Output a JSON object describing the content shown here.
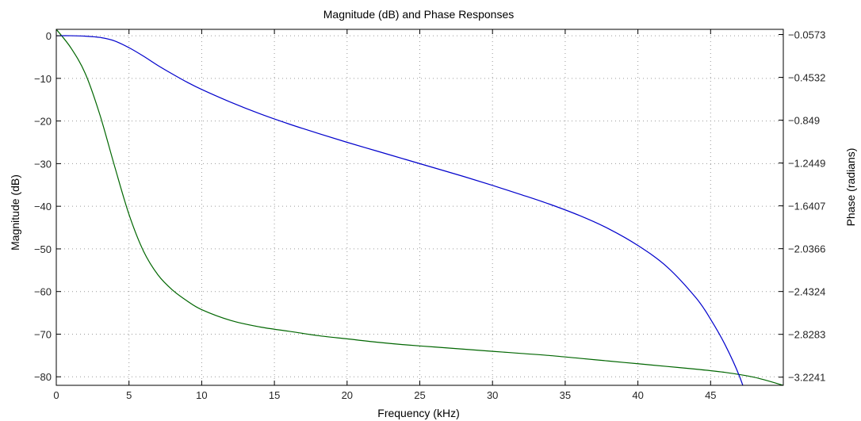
{
  "chart_data": {
    "type": "line",
    "title": "Magnitude (dB) and Phase Responses",
    "xlabel": "Frequency (kHz)",
    "ylabel": "Magnitude (dB)",
    "ylabel_right": "Phase (radians)",
    "xlim": [
      0,
      50
    ],
    "ylim": [
      -82,
      1.5
    ],
    "ylim_right": [
      -3.2994,
      -0.0097
    ],
    "grid": true,
    "x_ticks": [
      0,
      5,
      10,
      15,
      20,
      25,
      30,
      35,
      40,
      45
    ],
    "x_tick_labels": [
      "0",
      "5",
      "10",
      "15",
      "20",
      "25",
      "30",
      "35",
      "40",
      "45"
    ],
    "y_ticks": [
      0,
      -10,
      -20,
      -30,
      -40,
      -50,
      -60,
      -70,
      -80
    ],
    "y_tick_labels": [
      "0",
      "−10",
      "−20",
      "−30",
      "−40",
      "−50",
      "−60",
      "−70",
      "−80"
    ],
    "y_right_ticks": [
      -0.0573,
      -0.4532,
      -0.849,
      -1.2449,
      -1.6407,
      -2.0366,
      -2.4324,
      -2.8283,
      -3.2241
    ],
    "y_right_tick_labels": [
      "−0.0573",
      "−0.4532",
      "−0.849",
      "−1.2449",
      "−1.6407",
      "−2.0366",
      "−2.4324",
      "−2.8283",
      "−3.2241"
    ],
    "colors": {
      "magnitude": "#0000cc",
      "phase": "#006600",
      "grid": "#9a9a9a",
      "frame": "#000000"
    },
    "series": [
      {
        "axis": "left",
        "x": [
          0,
          1,
          2,
          3,
          4,
          5,
          6,
          7,
          8,
          9,
          10,
          12,
          14,
          16,
          18,
          20,
          22,
          24,
          26,
          28,
          30,
          32,
          34,
          36,
          38,
          40,
          42,
          44,
          45,
          46,
          47,
          48
        ],
        "values": [
          0,
          0,
          -0.1,
          -0.4,
          -1.2,
          -2.8,
          -4.8,
          -7,
          -9,
          -10.9,
          -12.6,
          -15.6,
          -18.3,
          -20.7,
          -22.9,
          -25,
          -27,
          -29,
          -31,
          -33,
          -35.1,
          -37.3,
          -39.6,
          -42.2,
          -45.3,
          -49.2,
          -54.2,
          -61.5,
          -66.5,
          -72.5,
          -80,
          -90
        ]
      },
      {
        "axis": "right",
        "x": [
          0,
          1,
          2,
          3,
          4,
          5,
          6,
          7,
          8,
          9,
          10,
          12,
          14,
          16,
          18,
          20,
          22,
          24,
          26,
          28,
          30,
          32,
          34,
          36,
          38,
          40,
          42,
          44,
          46,
          48,
          50
        ],
        "values": [
          -0.0097,
          -0.18,
          -0.42,
          -0.8,
          -1.27,
          -1.72,
          -2.06,
          -2.28,
          -2.42,
          -2.52,
          -2.6,
          -2.7,
          -2.76,
          -2.8,
          -2.84,
          -2.87,
          -2.9,
          -2.925,
          -2.945,
          -2.965,
          -2.985,
          -3.005,
          -3.025,
          -3.05,
          -3.075,
          -3.1,
          -3.125,
          -3.15,
          -3.18,
          -3.225,
          -3.2994
        ]
      }
    ]
  }
}
